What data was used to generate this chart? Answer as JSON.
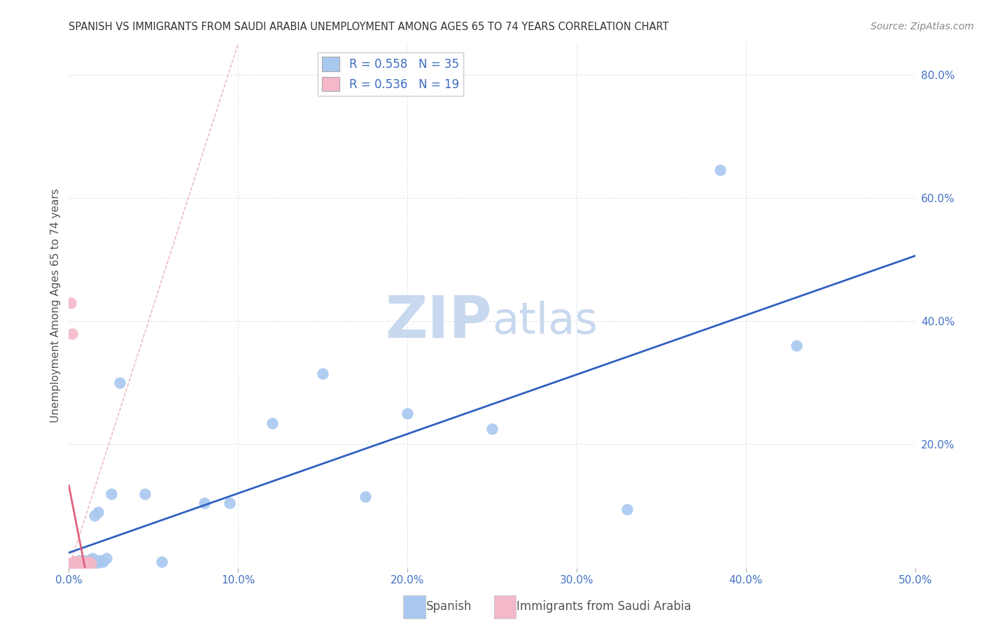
{
  "title": "SPANISH VS IMMIGRANTS FROM SAUDI ARABIA UNEMPLOYMENT AMONG AGES 65 TO 74 YEARS CORRELATION CHART",
  "source": "Source: ZipAtlas.com",
  "ylabel": "Unemployment Among Ages 65 to 74 years",
  "xlim": [
    0.0,
    0.5
  ],
  "ylim": [
    0.0,
    0.85
  ],
  "xticks": [
    0.0,
    0.1,
    0.2,
    0.3,
    0.4,
    0.5
  ],
  "yticks_right": [
    0.2,
    0.4,
    0.6,
    0.8
  ],
  "spanish_R": 0.558,
  "spanish_N": 35,
  "saudi_R": 0.536,
  "saudi_N": 19,
  "spanish_color": "#a8c8f0",
  "saudi_color": "#f4b8c8",
  "regression_blue_color": "#3060c0",
  "regression_pink_color": "#e06080",
  "diagonal_color": "#e8b0b8",
  "background_color": "#ffffff",
  "grid_color": "#e0e8f0",
  "spanish_x": [
    0.001,
    0.002,
    0.003,
    0.004,
    0.005,
    0.006,
    0.007,
    0.008,
    0.009,
    0.01,
    0.011,
    0.012,
    0.013,
    0.014,
    0.015,
    0.016,
    0.017,
    0.018,
    0.019,
    0.02,
    0.022,
    0.025,
    0.03,
    0.045,
    0.055,
    0.08,
    0.095,
    0.12,
    0.15,
    0.175,
    0.2,
    0.25,
    0.33,
    0.385,
    0.43
  ],
  "spanish_y": [
    0.008,
    0.005,
    0.01,
    0.008,
    0.006,
    0.012,
    0.008,
    0.01,
    0.012,
    0.01,
    0.008,
    0.012,
    0.01,
    0.015,
    0.085,
    0.008,
    0.09,
    0.012,
    0.01,
    0.01,
    0.015,
    0.12,
    0.3,
    0.12,
    0.01,
    0.105,
    0.105,
    0.235,
    0.315,
    0.115,
    0.25,
    0.225,
    0.095,
    0.645,
    0.36
  ],
  "saudi_x": [
    0.001,
    0.002,
    0.003,
    0.004,
    0.005,
    0.006,
    0.007,
    0.008,
    0.009,
    0.01,
    0.011,
    0.012,
    0.013,
    0.001,
    0.002,
    0.003,
    0.004,
    0.005,
    0.006
  ],
  "saudi_y": [
    0.008,
    0.006,
    0.01,
    0.01,
    0.008,
    0.008,
    0.01,
    0.008,
    0.01,
    0.008,
    0.008,
    0.01,
    0.008,
    0.43,
    0.38,
    0.01,
    0.01,
    0.01,
    0.01
  ],
  "title_fontsize": 10.5,
  "axis_label_fontsize": 11,
  "tick_fontsize": 11,
  "legend_fontsize": 12,
  "source_fontsize": 10,
  "watermark_color": "#c8d8ee",
  "watermark_fontsize": 60
}
